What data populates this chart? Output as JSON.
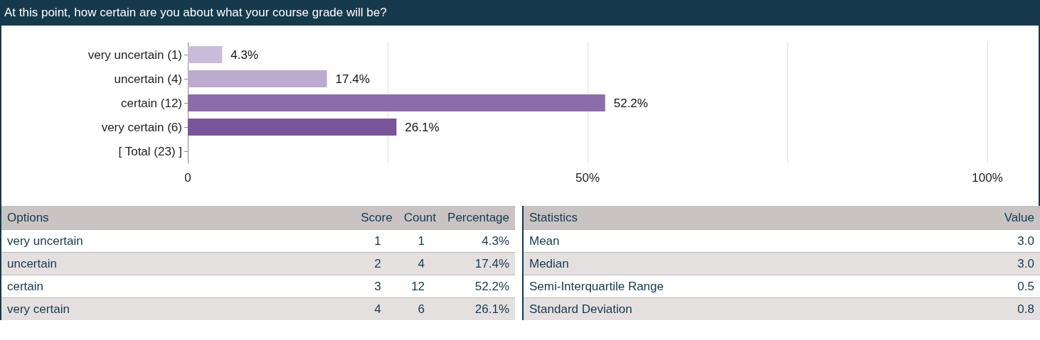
{
  "chart_data": [
    {
      "type": "bar",
      "title": "At this point, how certain are you about what your course grade will be?",
      "orientation": "horizontal",
      "categories": [
        "very uncertain (1)",
        "uncertain (4)",
        "certain (12)",
        "very certain (6)",
        "[ Total (23) ]"
      ],
      "values": [
        4.3,
        17.4,
        52.2,
        26.1,
        null
      ],
      "colors": [
        "#c9bcd8",
        "#bcaacf",
        "#8c6dab",
        "#7a5599",
        "#7a5599"
      ],
      "value_labels": [
        "4.3%",
        "17.4%",
        "52.2%",
        "26.1%",
        null
      ],
      "xlim": [
        0,
        100
      ],
      "xticks": [
        {
          "value": 0,
          "label": "0"
        },
        {
          "value": 25,
          "label": null
        },
        {
          "value": 50,
          "label": "50%"
        },
        {
          "value": 75,
          "label": null
        },
        {
          "value": 100,
          "label": "100%"
        }
      ],
      "grid": "x"
    },
    {
      "type": "other",
      "title": "Options",
      "categories": [
        "very uncertain",
        "uncertain",
        "certain",
        "very certain"
      ],
      "series": [
        {
          "name": "Score",
          "colors": [
            "#ffffff",
            "#e4e0e0",
            "#ffffff",
            "#e4e0e0"
          ],
          "values": [
            1,
            2,
            3,
            4
          ],
          "value_labels": [
            "1",
            "2",
            "3",
            "4"
          ]
        },
        {
          "name": "Count",
          "values": [
            1,
            4,
            12,
            6
          ],
          "value_labels": [
            "1",
            "4",
            "12",
            "6"
          ]
        },
        {
          "name": "Percentage",
          "values": [
            4.3,
            17.4,
            52.2,
            26.1
          ],
          "value_labels": [
            "4.3%",
            "17.4%",
            "52.2%",
            "26.1%"
          ]
        }
      ]
    },
    {
      "type": "other",
      "title": "Statistics",
      "categories": [
        "Mean",
        "Median",
        "Semi-Interquartile Range",
        "Standard Deviation"
      ],
      "series": [
        {
          "name": "Value",
          "colors": [
            "#ffffff",
            "#e4e0e0",
            "#ffffff",
            "#e4e0e0"
          ],
          "values": [
            3.0,
            3.0,
            0.5,
            0.8
          ],
          "value_labels": [
            "3.0",
            "3.0",
            "0.5",
            "0.8"
          ]
        }
      ]
    }
  ]
}
